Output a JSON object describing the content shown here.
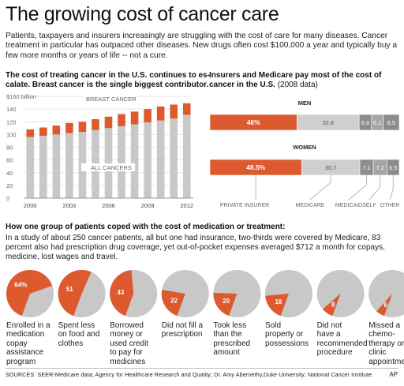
{
  "title": "The growing cost of cancer care",
  "intro": "Patients, taxpayers and insurers increasingly are struggling with the cost of care for many diseases. Cancer treatment  in particular has outpaced other diseases. New drugs often cost $100,000 a year and typically buy a few more months or years of life -- not a cure.",
  "bar_section": {
    "heading_line1": "The cost of treating cancer in the U.S. continues to es-",
    "heading_line2": "calate. Breast cancer is the single biggest contributor."
  },
  "insurer_section": {
    "heading_line1": "Insurers and Medicare pay most of the cost of",
    "heading_line2_bold": "cancer in the U.S.",
    "heading_line2_light": " (2008 data)"
  },
  "pie_section": {
    "heading": "How one group of patients coped with the cost of medication or treatment:",
    "text": "In a study of about 250 cancer patients, all but one had insurance, two-thirds were covered by Medicare, 83 percent also had prescription drug coverage, yet out-of-pocket expenses averaged $712 a month for copays, medicine, lost wages and travel."
  },
  "colors": {
    "accent": "#dc5a2d",
    "gray_light": "#c8c8c8",
    "gray_bar": "#cfcfcf",
    "gray_mid": "#a5a5a5",
    "gray_dark": "#8c8c8c"
  },
  "footer": {
    "sources": "SOURCES: SEER-Medicare data; Agency for Healthcare Research and Quality; Dr. Amy Abernethy,Duke University; National Cancer Institute",
    "credit": "AP"
  },
  "chart_data": [
    {
      "type": "bar",
      "stacked": true,
      "x": [
        2000,
        2001,
        2002,
        2003,
        2004,
        2005,
        2006,
        2007,
        2008,
        2009,
        2010,
        2011,
        2012
      ],
      "x_tick_labels": [
        "2000",
        "2003",
        "2006",
        "2009",
        "2012"
      ],
      "x_tick_values": [
        2000,
        2003,
        2006,
        2009,
        2012
      ],
      "y_tick_labels": [
        "$160 billion",
        "140",
        "120",
        "100",
        "80",
        "60",
        "40",
        "20",
        "0"
      ],
      "y_tick_values": [
        160,
        140,
        120,
        100,
        80,
        60,
        40,
        20,
        0
      ],
      "ylim": [
        0,
        160
      ],
      "total_values": [
        108,
        111,
        114,
        118,
        120,
        124,
        128,
        132,
        136,
        140,
        144,
        147,
        149
      ],
      "series": [
        {
          "name": "ALL CANCERS",
          "values": [
            96,
            98,
            100,
            102,
            104,
            107,
            110,
            113,
            116,
            119,
            122,
            125,
            131
          ],
          "color": "#c8c8c8"
        },
        {
          "name": "BREAST CANCER",
          "values": [
            12,
            13,
            14,
            16,
            16,
            17,
            18,
            19,
            20,
            21,
            22,
            22,
            18
          ],
          "color": "#dc5a2d"
        }
      ],
      "grid": true
    },
    {
      "type": "bar",
      "orientation": "horizontal",
      "stacked": true,
      "categories": [
        "MEN",
        "WOMEN"
      ],
      "series": [
        {
          "name": "PRIVATE INSURER",
          "values": [
            46,
            48.5
          ],
          "labels": [
            "46%",
            "48.5%"
          ],
          "color": "#dc5a2d"
        },
        {
          "name": "MEDICARE",
          "values": [
            32.8,
            30.7
          ],
          "labels": [
            "32.8",
            "30.7"
          ],
          "color": "#cfcfcf"
        },
        {
          "name": "MEDICAID",
          "values": [
            6.6,
            7.1
          ],
          "labels": [
            "6.6",
            "7.1"
          ],
          "color": "#8c8c8c"
        },
        {
          "name": "SELF",
          "values": [
            6.1,
            7.2
          ],
          "labels": [
            "6.1",
            "7.2"
          ],
          "color": "#a5a5a5"
        },
        {
          "name": "OTHER",
          "values": [
            8.5,
            6.5
          ],
          "labels": [
            "8.5",
            "6.5"
          ],
          "color": "#8c8c8c"
        }
      ]
    },
    {
      "type": "pie",
      "slices": [
        {
          "label_lines": [
            "Enrolled in a",
            "medication",
            "copay",
            "assistance",
            "program"
          ],
          "value": 64,
          "value_label": "64%"
        },
        {
          "label_lines": [
            "Spent less",
            "on food and",
            "clothes"
          ],
          "value": 51,
          "value_label": "51"
        },
        {
          "label_lines": [
            "Borrowed",
            "money or",
            "used credit",
            "to pay for",
            "medicines"
          ],
          "value": 43,
          "value_label": "43"
        },
        {
          "label_lines": [
            "Did not fill a",
            "prescription"
          ],
          "value": 22,
          "value_label": "22"
        },
        {
          "label_lines": [
            "Took less",
            "than the",
            "prescribed",
            "amount"
          ],
          "value": 20,
          "value_label": "20"
        },
        {
          "label_lines": [
            "Sold",
            "property or",
            "possessions"
          ],
          "value": 18,
          "value_label": "18"
        },
        {
          "label_lines": [
            "Did not",
            "have a",
            "recommended",
            "procedure"
          ],
          "value": 8,
          "value_label": "8"
        },
        {
          "label_lines": [
            "Missed a",
            "chemo-",
            "therapy or",
            "clinic",
            "appointment."
          ],
          "value": 6,
          "value_label": "6"
        }
      ]
    }
  ]
}
